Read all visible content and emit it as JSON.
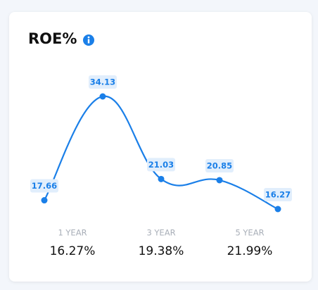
{
  "title": "ROE%",
  "chart_data": {
    "type": "line",
    "values": [
      17.66,
      34.13,
      21.03,
      20.85,
      16.27
    ],
    "color": "#1a7fe8"
  },
  "stats": [
    {
      "period": "1 YEAR",
      "value": "16.27%"
    },
    {
      "period": "3 YEAR",
      "value": "19.38%"
    },
    {
      "period": "5 YEAR",
      "value": "21.99%"
    }
  ]
}
